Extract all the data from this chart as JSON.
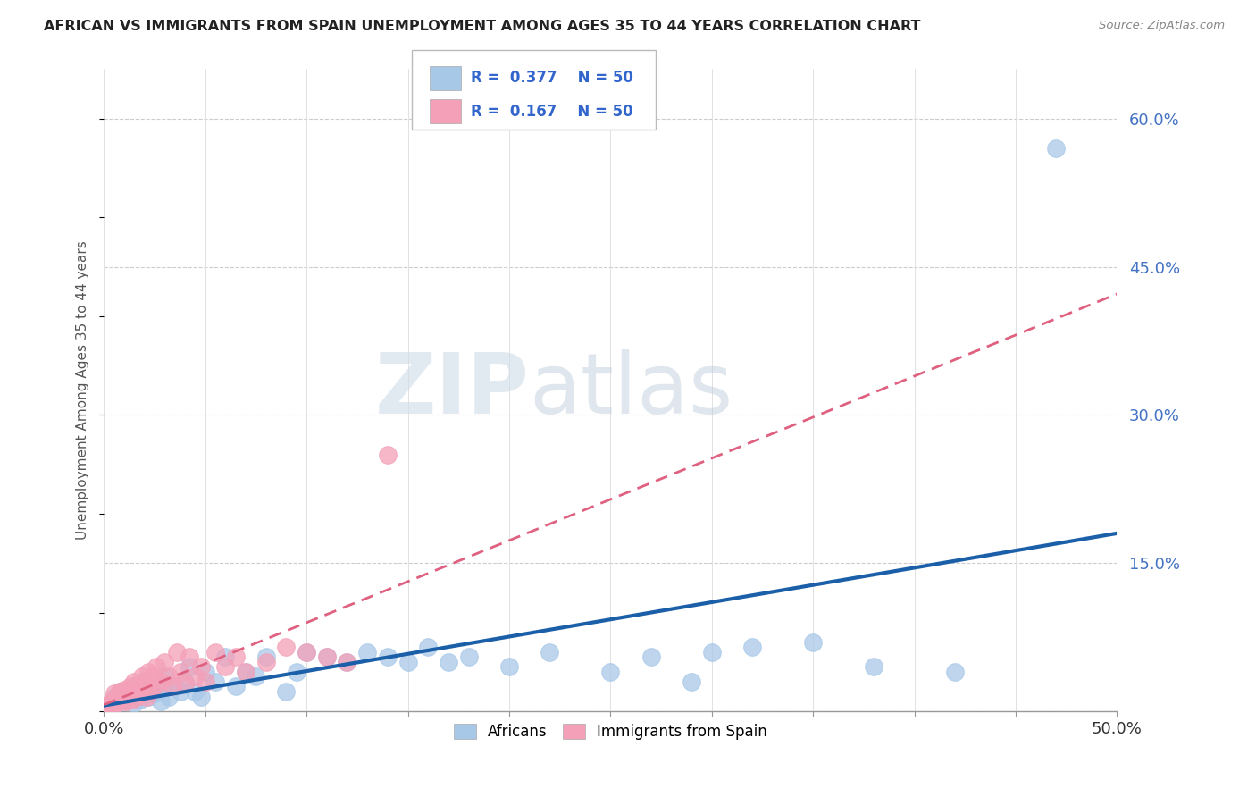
{
  "title": "AFRICAN VS IMMIGRANTS FROM SPAIN UNEMPLOYMENT AMONG AGES 35 TO 44 YEARS CORRELATION CHART",
  "source": "Source: ZipAtlas.com",
  "ylabel": "Unemployment Among Ages 35 to 44 years",
  "xlim": [
    0.0,
    0.5
  ],
  "ylim": [
    0.0,
    0.65
  ],
  "xticks": [
    0.0,
    0.05,
    0.1,
    0.15,
    0.2,
    0.25,
    0.3,
    0.35,
    0.4,
    0.45,
    0.5
  ],
  "yticks_right": [
    0.0,
    0.15,
    0.3,
    0.45,
    0.6
  ],
  "ytick_labels_right": [
    "",
    "15.0%",
    "30.0%",
    "45.0%",
    "60.0%"
  ],
  "R_african": 0.377,
  "N_african": 50,
  "R_spain": 0.167,
  "N_spain": 50,
  "color_african": "#a8c8e8",
  "color_spain": "#f4a0b8",
  "color_african_line": "#1a5fa8",
  "color_spain_line": "#e06080",
  "watermark_zip": "ZIP",
  "watermark_atlas": "atlas",
  "legend_label_african": "Africans",
  "legend_label_spain": "Immigrants from Spain",
  "african_x": [
    0.005,
    0.008,
    0.01,
    0.012,
    0.015,
    0.015,
    0.018,
    0.02,
    0.02,
    0.022,
    0.025,
    0.028,
    0.03,
    0.03,
    0.032,
    0.035,
    0.038,
    0.04,
    0.042,
    0.045,
    0.048,
    0.05,
    0.055,
    0.06,
    0.065,
    0.07,
    0.075,
    0.08,
    0.09,
    0.095,
    0.1,
    0.11,
    0.12,
    0.13,
    0.14,
    0.15,
    0.16,
    0.17,
    0.18,
    0.2,
    0.22,
    0.25,
    0.27,
    0.29,
    0.3,
    0.32,
    0.35,
    0.38,
    0.42,
    0.47
  ],
  "african_y": [
    0.015,
    0.02,
    0.01,
    0.018,
    0.008,
    0.025,
    0.012,
    0.022,
    0.03,
    0.015,
    0.018,
    0.01,
    0.025,
    0.035,
    0.015,
    0.025,
    0.02,
    0.03,
    0.045,
    0.02,
    0.015,
    0.04,
    0.03,
    0.055,
    0.025,
    0.04,
    0.035,
    0.055,
    0.02,
    0.04,
    0.06,
    0.055,
    0.05,
    0.06,
    0.055,
    0.05,
    0.065,
    0.05,
    0.055,
    0.045,
    0.06,
    0.04,
    0.055,
    0.03,
    0.06,
    0.065,
    0.07,
    0.045,
    0.04,
    0.57
  ],
  "spain_x": [
    0.002,
    0.003,
    0.004,
    0.005,
    0.005,
    0.006,
    0.007,
    0.008,
    0.008,
    0.009,
    0.01,
    0.01,
    0.011,
    0.012,
    0.013,
    0.014,
    0.015,
    0.015,
    0.016,
    0.017,
    0.018,
    0.019,
    0.02,
    0.021,
    0.022,
    0.023,
    0.024,
    0.025,
    0.026,
    0.028,
    0.03,
    0.032,
    0.034,
    0.036,
    0.038,
    0.04,
    0.042,
    0.045,
    0.048,
    0.05,
    0.055,
    0.06,
    0.065,
    0.07,
    0.08,
    0.09,
    0.1,
    0.11,
    0.12,
    0.14
  ],
  "spain_y": [
    0.005,
    0.008,
    0.01,
    0.012,
    0.018,
    0.008,
    0.015,
    0.01,
    0.02,
    0.012,
    0.015,
    0.022,
    0.01,
    0.018,
    0.025,
    0.012,
    0.02,
    0.03,
    0.015,
    0.025,
    0.018,
    0.035,
    0.028,
    0.015,
    0.04,
    0.02,
    0.035,
    0.025,
    0.045,
    0.03,
    0.05,
    0.035,
    0.025,
    0.06,
    0.04,
    0.028,
    0.055,
    0.035,
    0.045,
    0.03,
    0.06,
    0.045,
    0.055,
    0.04,
    0.05,
    0.065,
    0.06,
    0.055,
    0.05,
    0.26
  ]
}
